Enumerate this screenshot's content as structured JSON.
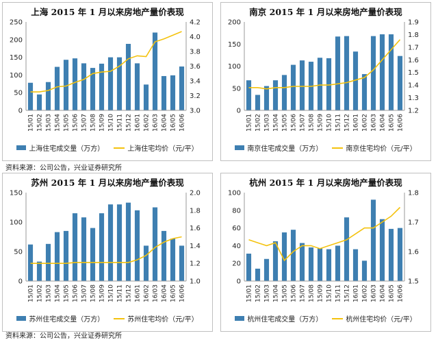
{
  "colors": {
    "bar": "#3e7fb1",
    "line": "#f4c20d",
    "axis": "#9a9a9a",
    "text": "#222222"
  },
  "source_top": "资料来源：公司公告，兴业证券研究所",
  "source_bottom": "资料来源：公司公告，兴业证券研究所",
  "chart_data": [
    {
      "type": "bar+line",
      "title": "上海 2015 年 1 月以来房地产量价表现",
      "categories": [
        "15/01",
        "15/02",
        "15/03",
        "15/04",
        "15/05",
        "15/06",
        "15/07",
        "15/08",
        "15/09",
        "15/10",
        "15/11",
        "15/12",
        "16/01",
        "16/02",
        "16/03",
        "16/04",
        "16/05",
        "16/06"
      ],
      "series": [
        {
          "name": "上海住宅成交量（万方）",
          "kind": "bar",
          "axis": "left",
          "values": [
            78,
            45,
            80,
            123,
            143,
            147,
            133,
            120,
            132,
            150,
            150,
            188,
            133,
            73,
            220,
            97,
            99,
            124
          ]
        },
        {
          "name": "上海住宅均价（元/平）",
          "kind": "line",
          "axis": "right",
          "values": [
            3.25,
            3.25,
            3.27,
            3.32,
            3.33,
            3.38,
            3.42,
            3.5,
            3.52,
            3.53,
            3.6,
            3.7,
            3.74,
            3.73,
            3.93,
            3.97,
            4.02,
            4.07
          ]
        }
      ],
      "y_left": {
        "min": 0,
        "max": 250,
        "ticks": [
          "0",
          "50",
          "100",
          "150",
          "200",
          "250"
        ]
      },
      "y_right": {
        "min": 3.0,
        "max": 4.2,
        "ticks": [
          "3.0",
          "3.2",
          "3.4",
          "3.6",
          "3.8",
          "4.0",
          "4.2"
        ]
      }
    },
    {
      "type": "bar+line",
      "title": "南京 2015 年 1 月以来房地产量价表现",
      "categories": [
        "15/01",
        "15/02",
        "15/03",
        "15/04",
        "15/05",
        "15/06",
        "15/07",
        "15/08",
        "15/09",
        "15/10",
        "15/11",
        "15/12",
        "16/01",
        "16/02",
        "16/03",
        "16/04",
        "16/05",
        "16/06"
      ],
      "series": [
        {
          "name": "南京住宅成交量（万方）",
          "kind": "bar",
          "axis": "left",
          "values": [
            68,
            35,
            55,
            68,
            80,
            103,
            113,
            110,
            119,
            118,
            167,
            168,
            133,
            82,
            168,
            172,
            172,
            123
          ]
        },
        {
          "name": "南京住宅均价（元/平）",
          "kind": "line",
          "axis": "right",
          "values": [
            1.38,
            1.38,
            1.37,
            1.38,
            1.38,
            1.39,
            1.39,
            1.39,
            1.4,
            1.4,
            1.41,
            1.42,
            1.44,
            1.46,
            1.52,
            1.6,
            1.68,
            1.76
          ]
        }
      ],
      "y_left": {
        "min": 0,
        "max": 200,
        "ticks": [
          "0",
          "50",
          "100",
          "150",
          "200"
        ]
      },
      "y_right": {
        "min": 1.2,
        "max": 1.9,
        "ticks": [
          "1.2",
          "1.3",
          "1.4",
          "1.5",
          "1.6",
          "1.7",
          "1.8",
          "1.9"
        ]
      }
    },
    {
      "type": "bar+line",
      "title": "苏州 2015 年 1 月以来房地产量价表现",
      "categories": [
        "15/01",
        "15/02",
        "15/03",
        "15/04",
        "15/05",
        "15/06",
        "15/07",
        "15/08",
        "15/09",
        "15/10",
        "15/11",
        "15/12",
        "16/01",
        "16/02",
        "16/03",
        "16/04",
        "16/05",
        "16/06"
      ],
      "series": [
        {
          "name": "苏州住宅成交量（万方）",
          "kind": "bar",
          "axis": "left",
          "values": [
            62,
            33,
            63,
            83,
            85,
            115,
            108,
            90,
            115,
            130,
            130,
            133,
            120,
            60,
            125,
            85,
            72,
            60
          ]
        },
        {
          "name": "苏州住宅均价（元/平）",
          "kind": "line",
          "axis": "right",
          "values": [
            1.2,
            1.2,
            1.2,
            1.2,
            1.2,
            1.21,
            1.21,
            1.21,
            1.21,
            1.21,
            1.21,
            1.21,
            1.24,
            1.29,
            1.38,
            1.44,
            1.48,
            1.5
          ]
        }
      ],
      "y_left": {
        "min": 0,
        "max": 150,
        "ticks": [
          "0",
          "50",
          "100",
          "150"
        ]
      },
      "y_right": {
        "min": 1.0,
        "max": 2.0,
        "ticks": [
          "1.0",
          "1.2",
          "1.4",
          "1.6",
          "1.8",
          "2.0"
        ]
      }
    },
    {
      "type": "bar+line",
      "title": "杭州 2015 年 1 月以来房地产量价表现",
      "categories": [
        "15/01",
        "15/02",
        "15/03",
        "15/04",
        "15/05",
        "15/06",
        "15/07",
        "15/08",
        "15/09",
        "15/10",
        "15/11",
        "15/12",
        "16/01",
        "16/02",
        "16/03",
        "16/04",
        "16/05",
        "16/06"
      ],
      "series": [
        {
          "name": "杭州住宅成交量（万方）",
          "kind": "bar",
          "axis": "left",
          "values": [
            31,
            14,
            25,
            45,
            55,
            58,
            43,
            38,
            37,
            36,
            40,
            72,
            36,
            23,
            92,
            70,
            59,
            60
          ]
        },
        {
          "name": "杭州住宅均价（元/平）",
          "kind": "line",
          "axis": "right",
          "values": [
            1.64,
            1.63,
            1.62,
            1.63,
            1.57,
            1.6,
            1.62,
            1.62,
            1.61,
            1.62,
            1.63,
            1.64,
            1.66,
            1.68,
            1.68,
            1.7,
            1.72,
            1.75
          ]
        }
      ],
      "y_left": {
        "min": 0,
        "max": 100,
        "ticks": [
          "0",
          "20",
          "40",
          "60",
          "80",
          "100"
        ]
      },
      "y_right": {
        "min": 1.5,
        "max": 1.8,
        "ticks": [
          "1.5",
          "1.6",
          "1.7",
          "1.8"
        ]
      }
    }
  ]
}
